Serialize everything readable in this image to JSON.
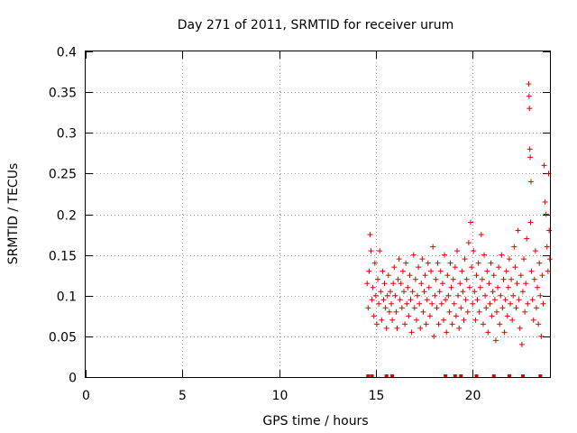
{
  "chart_data": {
    "type": "scatter",
    "title": "Day 271 of 2011, SRMTID for receiver urum",
    "xlabel": "GPS time / hours",
    "ylabel": "SRMTID / TECUs",
    "xlim": [
      0,
      24
    ],
    "ylim": [
      0,
      0.4
    ],
    "x_ticks": [
      {
        "value": 0,
        "label": "0"
      },
      {
        "value": 5,
        "label": "5"
      },
      {
        "value": 10,
        "label": "10"
      },
      {
        "value": 15,
        "label": "15"
      },
      {
        "value": 20,
        "label": "20"
      }
    ],
    "y_ticks": [
      {
        "value": 0,
        "label": "0"
      },
      {
        "value": 0.05,
        "label": "0.05"
      },
      {
        "value": 0.1,
        "label": "0.1"
      },
      {
        "value": 0.15,
        "label": "0.15"
      },
      {
        "value": 0.2,
        "label": "0.2"
      },
      {
        "value": 0.25,
        "label": "0.25"
      },
      {
        "value": 0.3,
        "label": "0.3"
      },
      {
        "value": 0.35,
        "label": "0.35"
      },
      {
        "value": 0.4,
        "label": "0.4"
      }
    ],
    "grid": true,
    "legend": "none",
    "marker": "plus",
    "color": "#e00000",
    "points": [
      [
        14.55,
        0.115
      ],
      [
        14.6,
        0.085
      ],
      [
        14.65,
        0.13
      ],
      [
        14.7,
        0.175
      ],
      [
        14.75,
        0.155
      ],
      [
        14.8,
        0.095
      ],
      [
        14.85,
        0.11
      ],
      [
        14.9,
        0.075
      ],
      [
        14.95,
        0.14
      ],
      [
        15.0,
        0.1
      ],
      [
        15.05,
        0.065
      ],
      [
        15.1,
        0.12
      ],
      [
        15.15,
        0.09
      ],
      [
        15.2,
        0.155
      ],
      [
        15.25,
        0.105
      ],
      [
        15.3,
        0.07
      ],
      [
        15.35,
        0.13
      ],
      [
        15.4,
        0.095
      ],
      [
        15.45,
        0.115
      ],
      [
        15.5,
        0.085
      ],
      [
        15.55,
        0.06
      ],
      [
        15.6,
        0.1
      ],
      [
        15.65,
        0.125
      ],
      [
        15.7,
        0.08
      ],
      [
        15.75,
        0.105
      ],
      [
        15.8,
        0.09
      ],
      [
        15.85,
        0.07
      ],
      [
        15.9,
        0.115
      ],
      [
        15.95,
        0.135
      ],
      [
        16.0,
        0.1
      ],
      [
        16.05,
        0.08
      ],
      [
        16.1,
        0.06
      ],
      [
        16.15,
        0.12
      ],
      [
        16.2,
        0.145
      ],
      [
        16.25,
        0.095
      ],
      [
        16.3,
        0.115
      ],
      [
        16.35,
        0.085
      ],
      [
        16.4,
        0.13
      ],
      [
        16.45,
        0.105
      ],
      [
        16.5,
        0.065
      ],
      [
        16.55,
        0.14
      ],
      [
        16.6,
        0.09
      ],
      [
        16.65,
        0.11
      ],
      [
        16.7,
        0.075
      ],
      [
        16.75,
        0.125
      ],
      [
        16.8,
        0.095
      ],
      [
        16.85,
        0.055
      ],
      [
        16.9,
        0.105
      ],
      [
        16.95,
        0.15
      ],
      [
        17.0,
        0.085
      ],
      [
        17.05,
        0.12
      ],
      [
        17.1,
        0.07
      ],
      [
        17.15,
        0.1
      ],
      [
        17.2,
        0.135
      ],
      [
        17.25,
        0.09
      ],
      [
        17.3,
        0.06
      ],
      [
        17.35,
        0.115
      ],
      [
        17.4,
        0.145
      ],
      [
        17.45,
        0.08
      ],
      [
        17.5,
        0.105
      ],
      [
        17.55,
        0.125
      ],
      [
        17.6,
        0.065
      ],
      [
        17.65,
        0.095
      ],
      [
        17.7,
        0.14
      ],
      [
        17.75,
        0.11
      ],
      [
        17.8,
        0.075
      ],
      [
        17.85,
        0.13
      ],
      [
        17.9,
        0.09
      ],
      [
        17.95,
        0.16
      ],
      [
        18.0,
        0.05
      ],
      [
        18.05,
        0.1
      ],
      [
        18.1,
        0.12
      ],
      [
        18.15,
        0.085
      ],
      [
        18.2,
        0.14
      ],
      [
        18.25,
        0.065
      ],
      [
        18.3,
        0.105
      ],
      [
        18.35,
        0.13
      ],
      [
        18.4,
        0.09
      ],
      [
        18.45,
        0.115
      ],
      [
        18.5,
        0.07
      ],
      [
        18.55,
        0.15
      ],
      [
        18.6,
        0.095
      ],
      [
        18.65,
        0.055
      ],
      [
        18.7,
        0.125
      ],
      [
        18.75,
        0.1
      ],
      [
        18.8,
        0.08
      ],
      [
        18.85,
        0.14
      ],
      [
        18.9,
        0.11
      ],
      [
        18.95,
        0.065
      ],
      [
        19.0,
        0.12
      ],
      [
        19.05,
        0.09
      ],
      [
        19.1,
        0.135
      ],
      [
        19.15,
        0.075
      ],
      [
        19.2,
        0.155
      ],
      [
        19.25,
        0.1
      ],
      [
        19.3,
        0.06
      ],
      [
        19.35,
        0.115
      ],
      [
        19.4,
        0.085
      ],
      [
        19.45,
        0.13
      ],
      [
        19.5,
        0.105
      ],
      [
        19.55,
        0.07
      ],
      [
        19.6,
        0.145
      ],
      [
        19.65,
        0.095
      ],
      [
        19.7,
        0.12
      ],
      [
        19.75,
        0.08
      ],
      [
        19.8,
        0.165
      ],
      [
        19.85,
        0.11
      ],
      [
        19.9,
        0.19
      ],
      [
        19.95,
        0.135
      ],
      [
        20.0,
        0.09
      ],
      [
        20.05,
        0.155
      ],
      [
        20.1,
        0.105
      ],
      [
        20.15,
        0.07
      ],
      [
        20.2,
        0.125
      ],
      [
        20.25,
        0.095
      ],
      [
        20.3,
        0.14
      ],
      [
        20.35,
        0.08
      ],
      [
        20.4,
        0.11
      ],
      [
        20.45,
        0.175
      ],
      [
        20.5,
        0.12
      ],
      [
        20.55,
        0.065
      ],
      [
        20.6,
        0.15
      ],
      [
        20.65,
        0.1
      ],
      [
        20.7,
        0.085
      ],
      [
        20.75,
        0.13
      ],
      [
        20.8,
        0.055
      ],
      [
        20.85,
        0.115
      ],
      [
        20.9,
        0.09
      ],
      [
        20.95,
        0.14
      ],
      [
        21.0,
        0.075
      ],
      [
        21.05,
        0.105
      ],
      [
        21.1,
        0.125
      ],
      [
        21.15,
        0.095
      ],
      [
        21.2,
        0.045
      ],
      [
        21.25,
        0.08
      ],
      [
        21.3,
        0.11
      ],
      [
        21.35,
        0.135
      ],
      [
        21.4,
        0.065
      ],
      [
        21.45,
        0.1
      ],
      [
        21.5,
        0.15
      ],
      [
        21.55,
        0.085
      ],
      [
        21.6,
        0.12
      ],
      [
        21.65,
        0.055
      ],
      [
        21.7,
        0.095
      ],
      [
        21.75,
        0.13
      ],
      [
        21.8,
        0.075
      ],
      [
        21.85,
        0.11
      ],
      [
        21.9,
        0.145
      ],
      [
        21.95,
        0.09
      ],
      [
        22.0,
        0.12
      ],
      [
        22.05,
        0.07
      ],
      [
        22.1,
        0.1
      ],
      [
        22.15,
        0.16
      ],
      [
        22.2,
        0.135
      ],
      [
        22.25,
        0.085
      ],
      [
        22.3,
        0.115
      ],
      [
        22.35,
        0.18
      ],
      [
        22.4,
        0.095
      ],
      [
        22.45,
        0.06
      ],
      [
        22.5,
        0.125
      ],
      [
        22.55,
        0.04
      ],
      [
        22.6,
        0.105
      ],
      [
        22.65,
        0.145
      ],
      [
        22.7,
        0.08
      ],
      [
        22.75,
        0.115
      ],
      [
        22.8,
        0.17
      ],
      [
        22.85,
        0.09
      ],
      [
        22.9,
        0.36
      ],
      [
        22.92,
        0.345
      ],
      [
        22.94,
        0.33
      ],
      [
        22.96,
        0.28
      ],
      [
        22.98,
        0.27
      ],
      [
        23.0,
        0.19
      ],
      [
        23.02,
        0.24
      ],
      [
        23.05,
        0.13
      ],
      [
        23.1,
        0.095
      ],
      [
        23.15,
        0.07
      ],
      [
        23.2,
        0.12
      ],
      [
        23.25,
        0.155
      ],
      [
        23.3,
        0.085
      ],
      [
        23.35,
        0.11
      ],
      [
        23.4,
        0.065
      ],
      [
        23.45,
        0.14
      ],
      [
        23.5,
        0.1
      ],
      [
        23.55,
        0.05
      ],
      [
        23.6,
        0.125
      ],
      [
        23.65,
        0.09
      ],
      [
        23.7,
        0.26
      ],
      [
        23.75,
        0.215
      ],
      [
        23.8,
        0.2
      ],
      [
        23.85,
        0.16
      ],
      [
        23.9,
        0.13
      ],
      [
        23.93,
        0.25
      ],
      [
        23.96,
        0.18
      ],
      [
        23.99,
        0.145
      ]
    ],
    "baseline_points": [
      14.6,
      14.8,
      15.55,
      15.85,
      18.6,
      19.1,
      19.4,
      20.2,
      21.1,
      21.9,
      22.6,
      23.5
    ]
  }
}
